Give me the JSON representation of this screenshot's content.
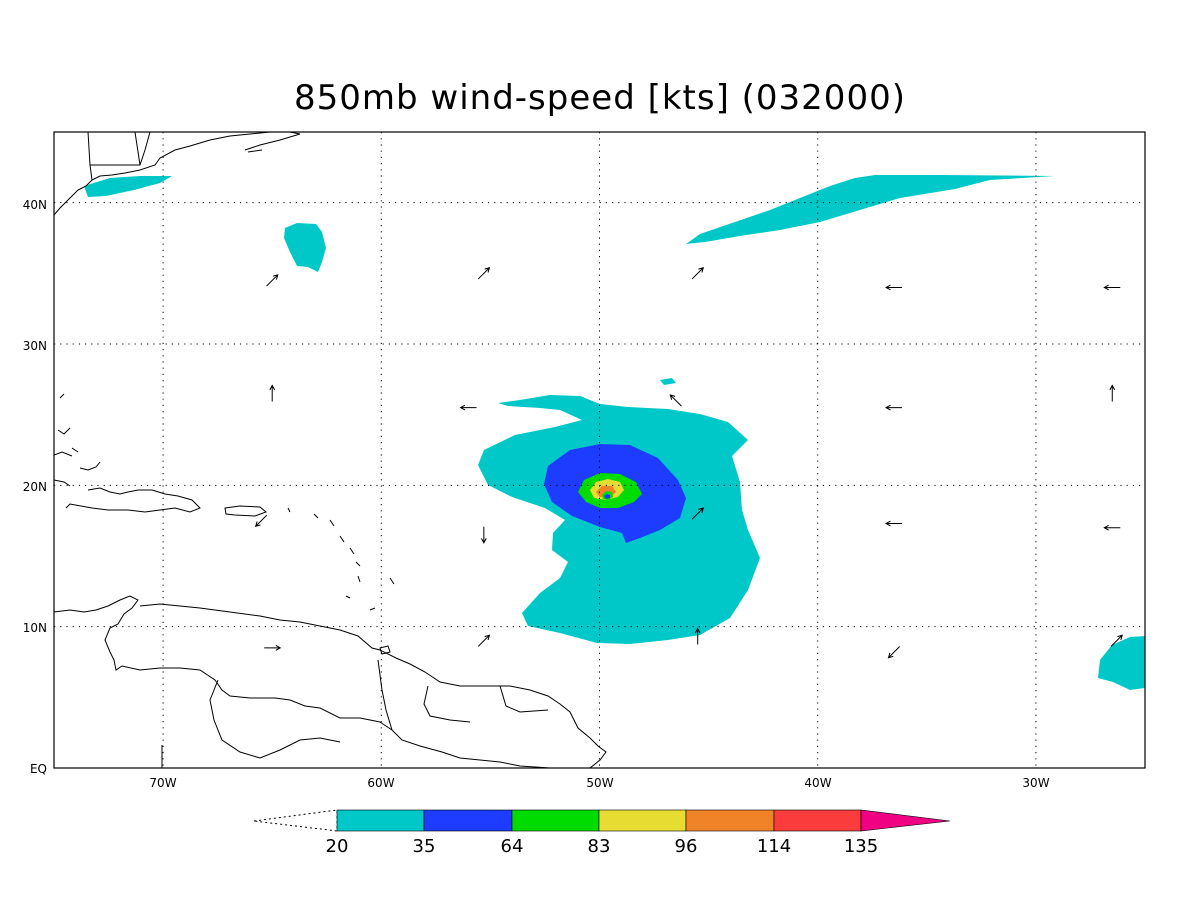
{
  "title": "850mb wind-speed [kts] (032000)",
  "axes": {
    "lon_ticks": [
      "70W",
      "60W",
      "50W",
      "40W",
      "30W"
    ],
    "lat_ticks": [
      "40N",
      "30N",
      "20N",
      "10N",
      "EQ"
    ],
    "lon_range": [
      -75,
      -25
    ],
    "lat_range": [
      0,
      45
    ],
    "grid": true,
    "grid_style": "dotted"
  },
  "colorbar": {
    "levels": [
      "20",
      "35",
      "64",
      "83",
      "96",
      "114",
      "135"
    ],
    "colors": [
      "#00c8c8",
      "#1e3cff",
      "#00dc00",
      "#e6dc32",
      "#f08228",
      "#fa3c3c",
      "#f00082"
    ],
    "under_color": "#ffffff"
  },
  "shading": {
    "cyan": "#00c8c8",
    "blue": "#1e3cff",
    "green": "#00dc00",
    "yellow": "#e6dc32",
    "orange": "#f08228"
  },
  "wind_vectors": [
    {
      "lon": -65,
      "lat": 34.5,
      "dir": "northeast"
    },
    {
      "lon": -55.3,
      "lat": 35,
      "dir": "northeast"
    },
    {
      "lon": -45.5,
      "lat": 35,
      "dir": "northeast"
    },
    {
      "lon": -36.5,
      "lat": 34,
      "dir": "west"
    },
    {
      "lon": -26.5,
      "lat": 34,
      "dir": "west"
    },
    {
      "lon": -65,
      "lat": 26.5,
      "dir": "north"
    },
    {
      "lon": -56,
      "lat": 25.5,
      "dir": "west"
    },
    {
      "lon": -46.5,
      "lat": 26,
      "dir": "northwest"
    },
    {
      "lon": -36.5,
      "lat": 25.5,
      "dir": "west"
    },
    {
      "lon": -26.5,
      "lat": 26.5,
      "dir": "north"
    },
    {
      "lon": -65.5,
      "lat": 17.5,
      "dir": "southwest"
    },
    {
      "lon": -55.3,
      "lat": 16.5,
      "dir": "south"
    },
    {
      "lon": -45.5,
      "lat": 18,
      "dir": "northeast"
    },
    {
      "lon": -36.5,
      "lat": 17.3,
      "dir": "west"
    },
    {
      "lon": -26.5,
      "lat": 17,
      "dir": "west"
    },
    {
      "lon": -65,
      "lat": 8.5,
      "dir": "east"
    },
    {
      "lon": -55.3,
      "lat": 9,
      "dir": "northeast"
    },
    {
      "lon": -45.5,
      "lat": 9.3,
      "dir": "north"
    },
    {
      "lon": -36.5,
      "lat": 8.2,
      "dir": "southwest"
    },
    {
      "lon": -26.3,
      "lat": 9,
      "dir": "northeast"
    }
  ]
}
